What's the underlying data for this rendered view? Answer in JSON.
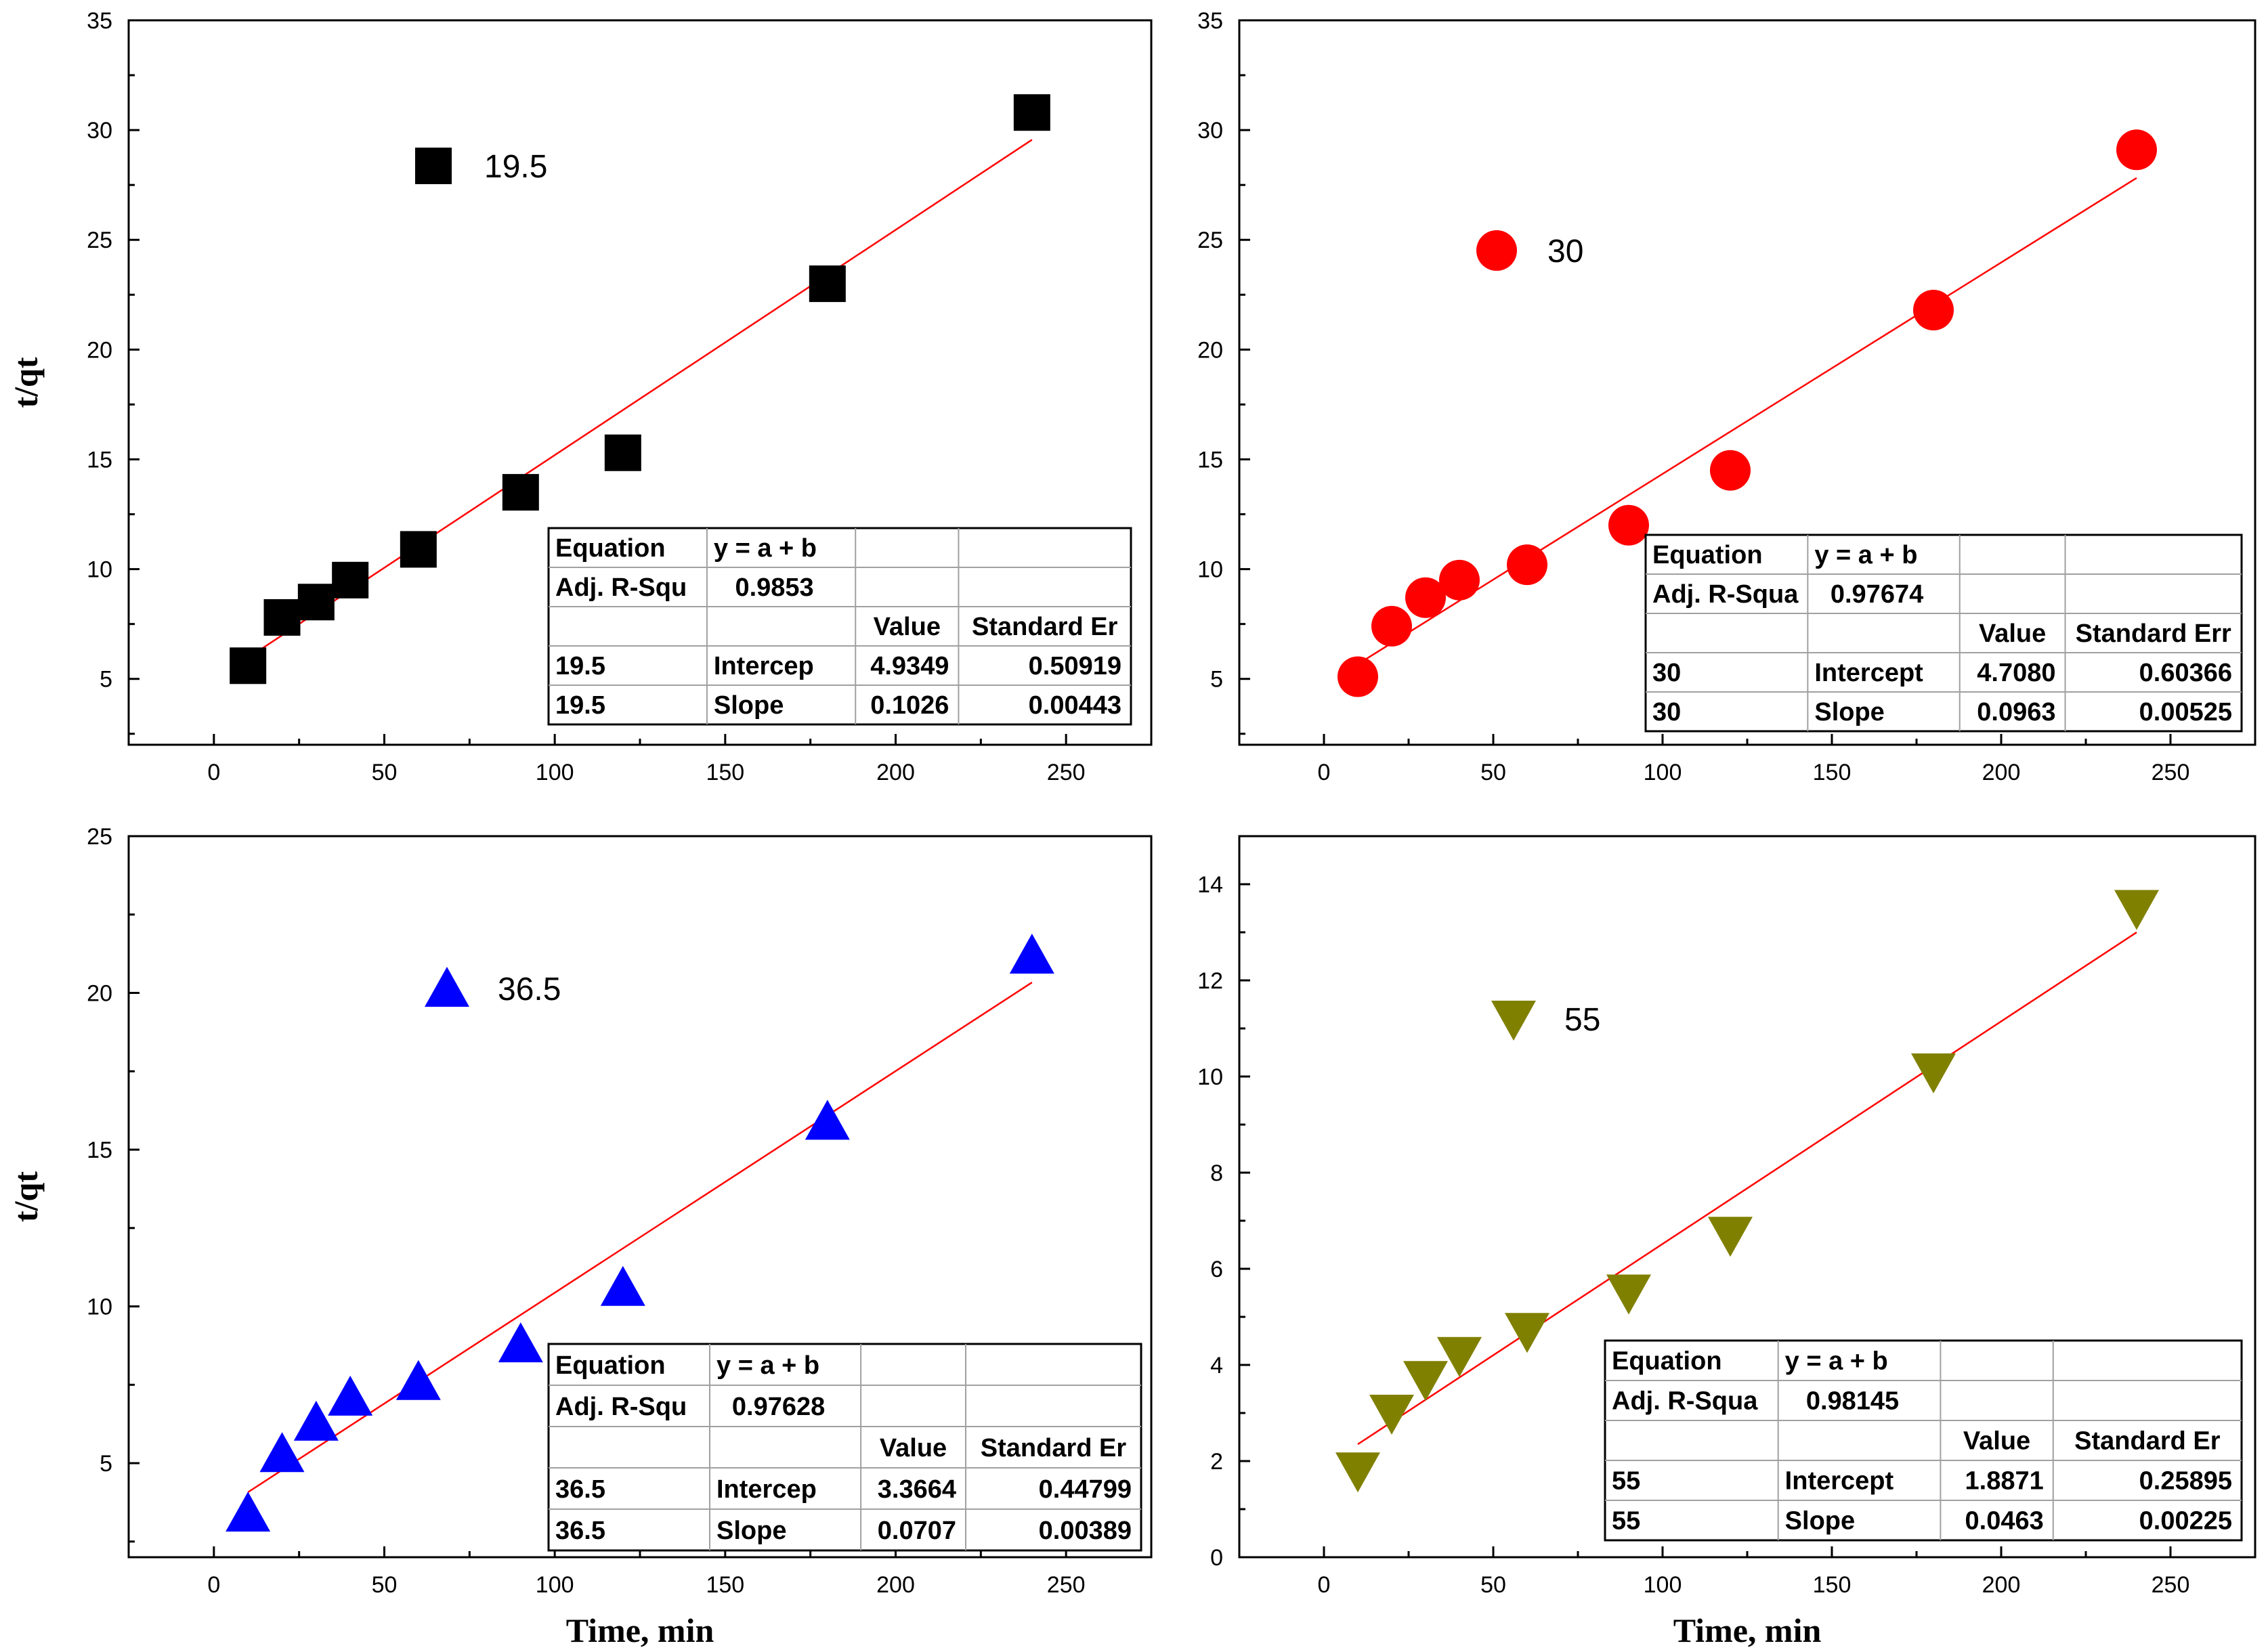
{
  "colors": {
    "fit_line": "#ff0000",
    "axis": "#000000",
    "table_border": "#000000"
  },
  "chart_data": [
    {
      "type": "scatter",
      "series_name": "19.5",
      "marker": "square",
      "color": "#000000",
      "x": [
        10,
        20,
        30,
        40,
        60,
        90,
        120,
        180,
        240
      ],
      "y": [
        5.6,
        7.8,
        8.5,
        9.5,
        10.9,
        13.5,
        15.3,
        23.0,
        30.8
      ],
      "fit": {
        "intercept": 4.9349,
        "slope": 0.1026
      },
      "xlim": [
        -25,
        275
      ],
      "ylim": [
        2,
        35
      ],
      "xticks": [
        0,
        50,
        100,
        150,
        200,
        250
      ],
      "yticks": [
        5,
        10,
        15,
        20,
        25,
        30,
        35
      ],
      "xlabel": "",
      "ylabel": "t/qt",
      "legend": {
        "label": "19.5",
        "position": "upper-left"
      },
      "fit_table": {
        "header": [
          "Equation",
          "y = a + b",
          "",
          ""
        ],
        "adj": [
          "Adj. R-Squ",
          "0.9853",
          "",
          ""
        ],
        "cols": [
          "",
          "",
          "Value",
          "Standard Er"
        ],
        "rows": [
          [
            "19.5",
            "Intercep",
            "4.9349",
            "0.50919"
          ],
          [
            "19.5",
            "Slope",
            "0.1026",
            "0.00443"
          ]
        ]
      }
    },
    {
      "type": "scatter",
      "series_name": "30",
      "marker": "circle",
      "color": "#ff0000",
      "x": [
        10,
        20,
        30,
        40,
        60,
        90,
        120,
        180,
        240
      ],
      "y": [
        5.1,
        7.4,
        8.7,
        9.5,
        10.2,
        12.0,
        14.5,
        21.8,
        29.1
      ],
      "fit": {
        "intercept": 4.708,
        "slope": 0.0963
      },
      "xlim": [
        -25,
        275
      ],
      "ylim": [
        2,
        35
      ],
      "xticks": [
        0,
        50,
        100,
        150,
        200,
        250
      ],
      "yticks": [
        5,
        10,
        15,
        20,
        25,
        30,
        35
      ],
      "xlabel": "",
      "ylabel": "",
      "legend": {
        "label": "30",
        "position": "upper-left"
      },
      "fit_table": {
        "header": [
          "Equation",
          "y = a + b",
          "",
          ""
        ],
        "adj": [
          "Adj. R-Squa",
          "0.97674",
          "",
          ""
        ],
        "cols": [
          "",
          "",
          "Value",
          "Standard Err"
        ],
        "rows": [
          [
            "30",
            "Intercept",
            "4.7080",
            "0.60366"
          ],
          [
            "30",
            "Slope",
            "0.0963",
            "0.00525"
          ]
        ]
      }
    },
    {
      "type": "scatter",
      "series_name": "36.5",
      "marker": "triangle-up",
      "color": "#0000ff",
      "x": [
        10,
        20,
        30,
        40,
        60,
        90,
        120,
        180,
        240
      ],
      "y": [
        3.4,
        5.3,
        6.3,
        7.1,
        7.6,
        8.8,
        10.6,
        15.9,
        21.2
      ],
      "fit": {
        "intercept": 3.3664,
        "slope": 0.0707
      },
      "xlim": [
        -25,
        275
      ],
      "ylim": [
        2,
        25
      ],
      "xticks": [
        0,
        50,
        100,
        150,
        200,
        250
      ],
      "yticks": [
        5,
        10,
        15,
        20,
        25
      ],
      "xlabel": "Time, min",
      "ylabel": "t/qt",
      "legend": {
        "label": "36.5",
        "position": "upper-left"
      },
      "fit_table": {
        "header": [
          "Equation",
          "y = a + b",
          "",
          ""
        ],
        "adj": [
          "Adj. R-Squ",
          "0.97628",
          "",
          ""
        ],
        "cols": [
          "",
          "",
          "Value",
          "Standard Er"
        ],
        "rows": [
          [
            "36.5",
            "Intercep",
            "3.3664",
            "0.44799"
          ],
          [
            "36.5",
            "Slope",
            "0.0707",
            "0.00389"
          ]
        ]
      }
    },
    {
      "type": "scatter",
      "series_name": "55",
      "marker": "triangle-down",
      "color": "#808000",
      "x": [
        10,
        20,
        30,
        40,
        60,
        90,
        120,
        180,
        240
      ],
      "y": [
        1.8,
        3.0,
        3.7,
        4.2,
        4.7,
        5.5,
        6.7,
        10.1,
        13.5
      ],
      "fit": {
        "intercept": 1.8871,
        "slope": 0.0463
      },
      "xlim": [
        -25,
        275
      ],
      "ylim": [
        0,
        15
      ],
      "xticks": [
        0,
        50,
        100,
        150,
        200,
        250
      ],
      "yticks": [
        0,
        2,
        4,
        6,
        8,
        10,
        12,
        14
      ],
      "xlabel": "Time, min",
      "ylabel": "",
      "legend": {
        "label": "55",
        "position": "upper-left"
      },
      "fit_table": {
        "header": [
          "Equation",
          "y = a + b",
          "",
          ""
        ],
        "adj": [
          "Adj. R-Squa",
          "0.98145",
          "",
          ""
        ],
        "cols": [
          "",
          "",
          "Value",
          "Standard Er"
        ],
        "rows": [
          [
            "55",
            "Intercept",
            "1.8871",
            "0.25895"
          ],
          [
            "55",
            "Slope",
            "0.0463",
            "0.00225"
          ]
        ]
      }
    }
  ]
}
